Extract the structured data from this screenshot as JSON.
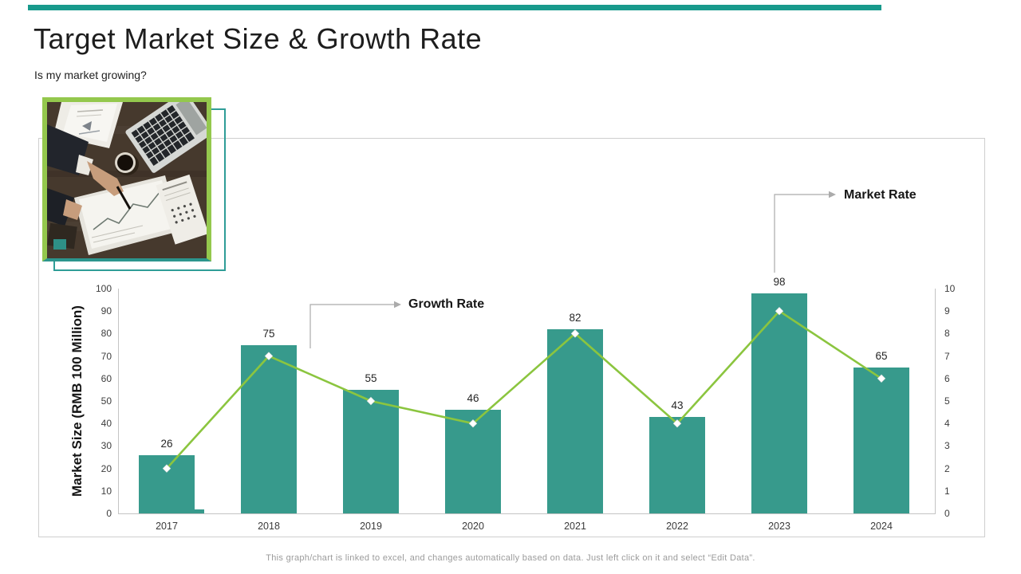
{
  "page": {
    "title": "Target Market Size & Growth Rate",
    "subtitle": "Is my market growing?",
    "footer": "This graph/chart is linked to excel, and changes automatically  based on data. Just left click on it and select “Edit Data”."
  },
  "colors": {
    "top_strip": "#189a8c",
    "bar_teal": "#379a8c",
    "line_green": "#8bc53f",
    "frame_gray": "#cfcfcf",
    "arrow_gray": "#a9a9a9",
    "photo_border_green": "#94c84d",
    "photo_border_teal": "#2c958d"
  },
  "chart_data": {
    "type": "bar",
    "title": "",
    "categories": [
      "2017",
      "2018",
      "2019",
      "2020",
      "2021",
      "2022",
      "2023",
      "2024"
    ],
    "series": [
      {
        "name": "Market Size",
        "type": "bar",
        "axis": "left",
        "color": "#379a8c",
        "values": [
          26,
          75,
          55,
          46,
          82,
          43,
          98,
          65
        ]
      },
      {
        "name": "Market Rate",
        "type": "line",
        "axis": "right",
        "color": "#8bc53f",
        "values": [
          2,
          7,
          5,
          4,
          8,
          4,
          9,
          6
        ]
      }
    ],
    "left_axis": {
      "label": "Market Size (RMB 100 Million)",
      "min": 0,
      "max": 100,
      "step": 10
    },
    "right_axis": {
      "min": 0,
      "max": 10,
      "step": 1
    },
    "annotations": [
      {
        "text": "Growth Rate"
      },
      {
        "text": "Market Rate"
      }
    ],
    "legend": "none",
    "grid": false
  }
}
